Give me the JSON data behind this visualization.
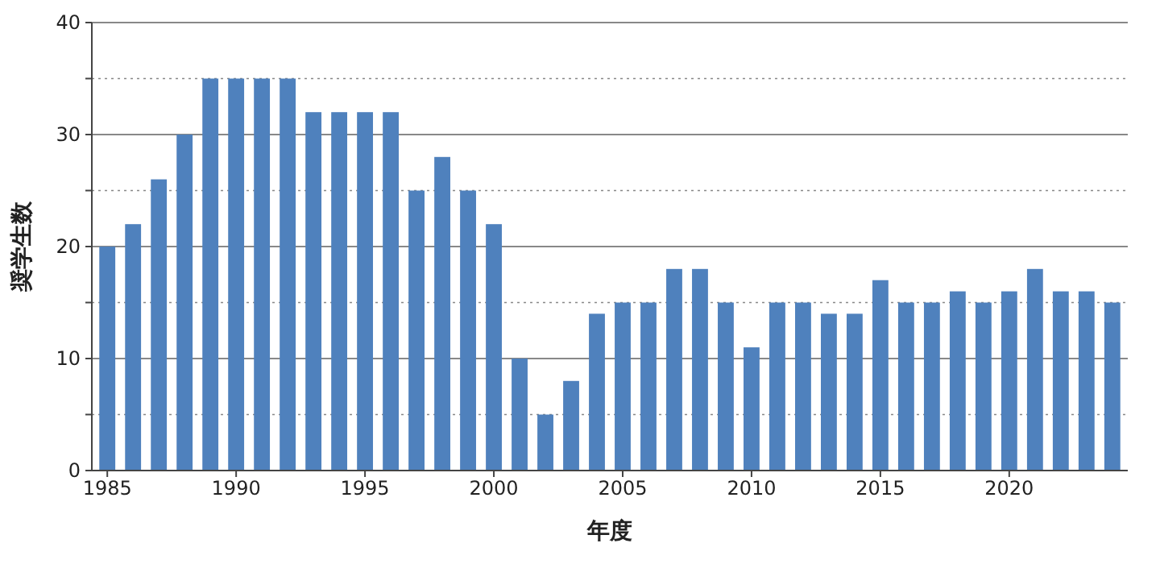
{
  "chart_data": {
    "type": "bar",
    "xlabel": "年度",
    "ylabel": "奨学生数",
    "color": "#4f81bd",
    "x": [
      1985,
      1986,
      1987,
      1988,
      1989,
      1990,
      1991,
      1992,
      1993,
      1994,
      1995,
      1996,
      1997,
      1998,
      1999,
      2000,
      2001,
      2002,
      2003,
      2004,
      2005,
      2006,
      2007,
      2008,
      2009,
      2010,
      2011,
      2012,
      2013,
      2014,
      2015,
      2016,
      2017,
      2018,
      2019,
      2020,
      2021,
      2022,
      2023,
      2024
    ],
    "values": [
      20,
      22,
      26,
      30,
      35,
      35,
      35,
      35,
      32,
      32,
      32,
      32,
      25,
      28,
      25,
      22,
      10,
      5,
      8,
      14,
      15,
      15,
      18,
      18,
      15,
      11,
      15,
      15,
      14,
      14,
      17,
      15,
      15,
      16,
      15,
      16,
      18,
      16,
      16,
      15
    ],
    "xlim": [
      1984.4,
      2024.6
    ],
    "xticks": [
      1985,
      1990,
      1995,
      2000,
      2005,
      2010,
      2015,
      2020
    ],
    "ylim": [
      0,
      40
    ],
    "yticks": [
      0,
      {
        "value": 5,
        "label": null
      },
      10,
      {
        "value": 15,
        "label": null
      },
      20,
      {
        "value": 25,
        "label": null
      },
      30,
      {
        "value": 35,
        "label": null
      },
      40
    ],
    "grid": "y"
  }
}
